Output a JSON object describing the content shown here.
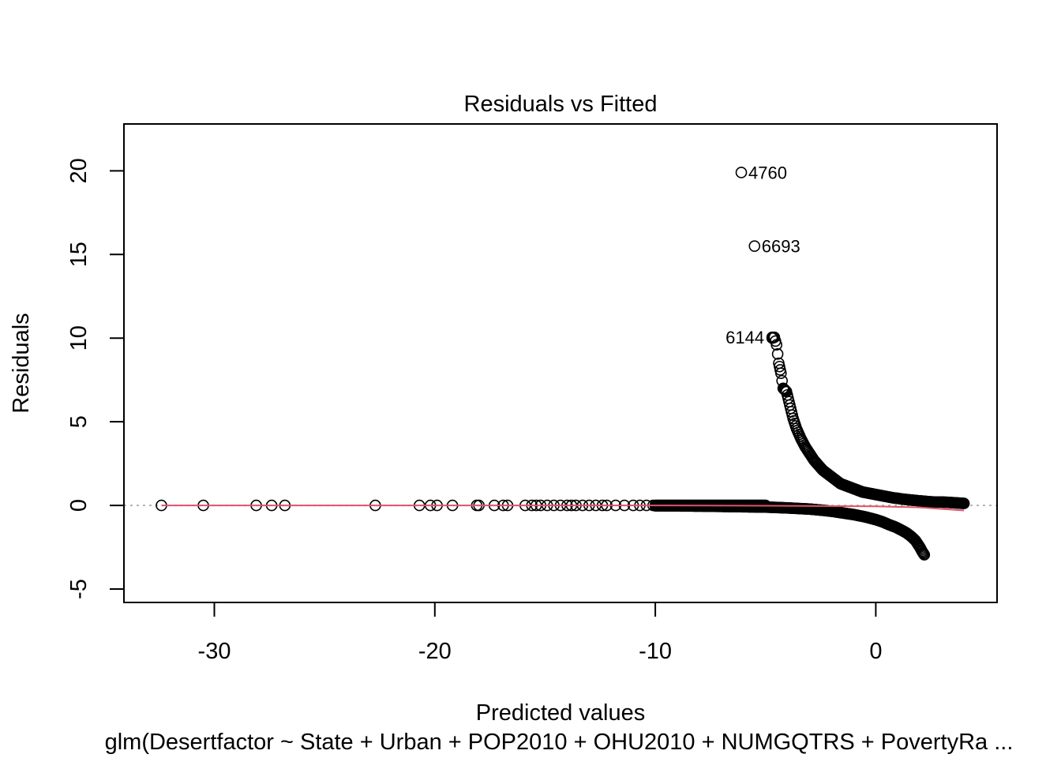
{
  "chart_data": {
    "type": "scatter",
    "title": "Residuals vs Fitted",
    "xlabel": "Predicted values",
    "subtitle": "glm(Desertfactor ~ State + Urban + POP2010 + OHU2010 + NUMGQTRS + PovertyRa ...",
    "ylabel": "Residuals",
    "xlim": [
      -34.1,
      5.5
    ],
    "ylim": [
      -5.8,
      22.8
    ],
    "x_ticks": [
      -30,
      -20,
      -10,
      0
    ],
    "y_ticks": [
      -5,
      0,
      5,
      10,
      15,
      20
    ],
    "x_tick_labels": [
      "-30",
      "-20",
      "-10",
      "0"
    ],
    "y_tick_labels": [
      "-5",
      "0",
      "5",
      "10",
      "15",
      "20"
    ],
    "grid": false,
    "zero_line": {
      "y": 0,
      "style": "dotted",
      "color": "#b3b3b3"
    },
    "smooth_line": {
      "x": [
        -32.4,
        -20,
        -10,
        -5,
        0,
        2,
        4
      ],
      "y": [
        0.0,
        0.0,
        0.0,
        -0.02,
        -0.05,
        -0.12,
        -0.3
      ],
      "color": "#DF536B"
    },
    "points": {
      "isolated_x": [
        -32.4,
        -30.5,
        -28.1,
        -27.4,
        -26.8,
        -22.7,
        -20.7,
        -20.2,
        -19.9,
        -19.2,
        -18.1,
        -18.0,
        -17.3,
        -16.9,
        -16.7,
        -15.9,
        -15.6,
        -15.4,
        -15.2,
        -14.9,
        -14.6,
        -14.3,
        -14.0,
        -13.8,
        -13.6,
        -13.3,
        -13.0,
        -12.7,
        -12.4,
        -12.2,
        -11.8,
        -11.4,
        -11.0,
        -10.7,
        -10.4,
        -10.1
      ],
      "isolated_y": 0,
      "positive_branch_x": [
        -4.7,
        -4.6,
        -4.5,
        -4.4,
        -4.3,
        -4.2,
        -4.05,
        -3.9,
        -3.75,
        -3.6,
        -3.4,
        -3.2,
        -3.0,
        -2.8,
        -2.6,
        -2.4,
        -2.2,
        -2.0,
        -1.8,
        -1.6,
        -1.4,
        -1.2,
        -1.0,
        -0.8,
        -0.6,
        -0.4,
        -0.2,
        0.0,
        0.2,
        0.4,
        0.6,
        0.8,
        1.0,
        1.2,
        1.4,
        1.6,
        1.8,
        2.0,
        2.2,
        2.4,
        2.7,
        3.0,
        3.3,
        4.0
      ],
      "positive_branch_y": [
        10.0,
        10.05,
        9.6,
        8.5,
        7.9,
        7.0,
        6.8,
        6.0,
        5.2,
        4.6,
        4.0,
        3.5,
        3.1,
        2.7,
        2.4,
        2.1,
        1.9,
        1.7,
        1.5,
        1.3,
        1.2,
        1.1,
        1.0,
        0.9,
        0.8,
        0.75,
        0.7,
        0.65,
        0.6,
        0.55,
        0.5,
        0.45,
        0.42,
        0.38,
        0.35,
        0.32,
        0.3,
        0.27,
        0.25,
        0.22,
        0.2,
        0.2,
        0.18,
        0.12
      ],
      "negative_branch_x": [
        -10.0,
        -8.0,
        -6.0,
        -5.0,
        -4.0,
        -3.0,
        -2.5,
        -2.0,
        -1.5,
        -1.0,
        -0.5,
        0.0,
        0.3,
        0.6,
        0.9,
        1.2,
        1.4,
        1.6,
        1.8,
        1.9,
        2.0,
        2.1,
        2.2
      ],
      "negative_branch_y": [
        -0.02,
        -0.04,
        -0.08,
        -0.1,
        -0.15,
        -0.22,
        -0.28,
        -0.35,
        -0.45,
        -0.55,
        -0.68,
        -0.85,
        -0.98,
        -1.15,
        -1.3,
        -1.5,
        -1.65,
        -1.85,
        -2.1,
        -2.3,
        -2.5,
        -2.75,
        -2.95
      ]
    },
    "labeled_points": [
      {
        "id": "4760",
        "x": -6.1,
        "y": 19.9,
        "label_side": "right"
      },
      {
        "id": "6693",
        "x": -5.5,
        "y": 15.5,
        "label_side": "right"
      },
      {
        "id": "6144",
        "x": -4.7,
        "y": 10.05,
        "label_side": "left"
      }
    ]
  }
}
